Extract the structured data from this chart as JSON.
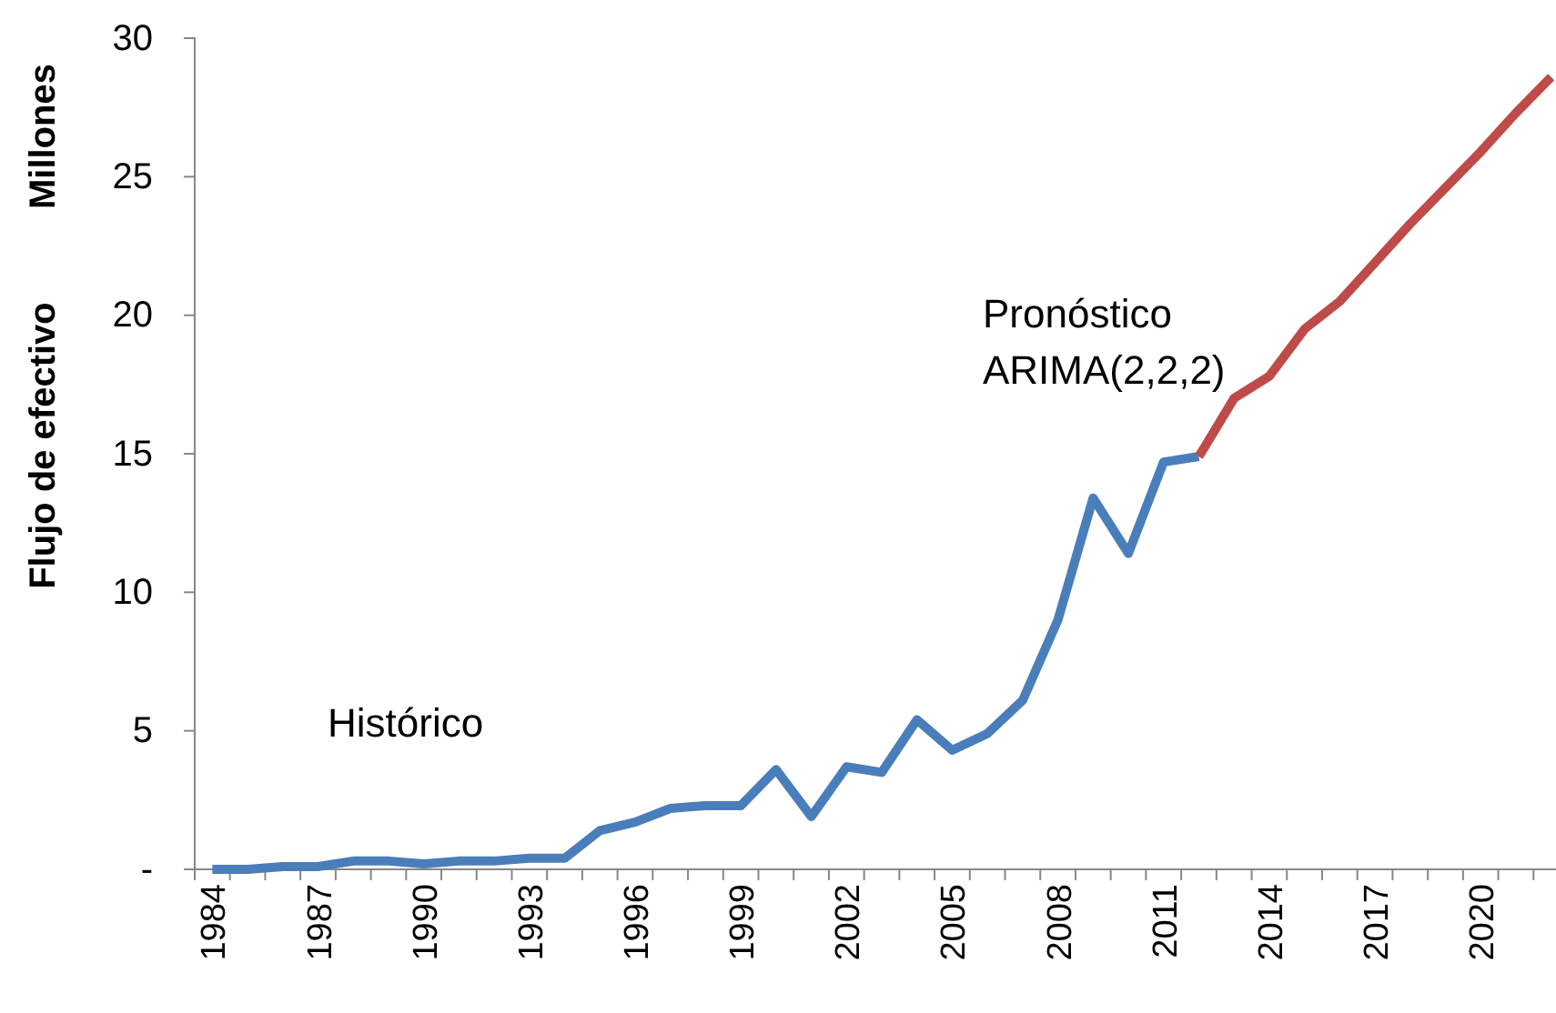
{
  "chart_data": {
    "type": "line",
    "ylabel": "Flujo de efectivo",
    "annotations": [
      "Millones"
    ],
    "categories": [
      "1984",
      null,
      null,
      "1987",
      null,
      null,
      "1990",
      null,
      null,
      "1993",
      null,
      null,
      "1996",
      null,
      null,
      "1999",
      null,
      null,
      "2002",
      null,
      null,
      "2005",
      null,
      null,
      "2008",
      null,
      null,
      "2011",
      null,
      null,
      "2014",
      null,
      null,
      "2017",
      null,
      null,
      "2020",
      null,
      null
    ],
    "series": [
      {
        "name": "Histórico",
        "color": "#4a7ebb",
        "values": [
          0.0,
          0.0,
          0.1,
          0.1,
          0.3,
          0.3,
          0.2,
          0.3,
          0.3,
          0.4,
          0.4,
          1.4,
          1.7,
          2.2,
          2.3,
          2.3,
          3.6,
          1.9,
          3.7,
          3.5,
          5.4,
          4.3,
          4.9,
          6.1,
          9.0,
          13.4,
          11.4,
          14.7,
          14.9,
          null,
          null,
          null,
          null,
          null,
          null,
          null,
          null,
          null,
          null
        ]
      },
      {
        "name": "Pronóstico ARIMA(2,2,2)",
        "color": "#be4b48",
        "values": [
          null,
          null,
          null,
          null,
          null,
          null,
          null,
          null,
          null,
          null,
          null,
          null,
          null,
          null,
          null,
          null,
          null,
          null,
          null,
          null,
          null,
          null,
          null,
          null,
          null,
          null,
          null,
          null,
          14.9,
          17.0,
          17.8,
          19.5,
          20.5,
          21.9,
          23.3,
          24.6,
          25.9,
          27.3,
          28.6
        ]
      }
    ],
    "ylim": [
      0,
      30
    ],
    "yticks": [
      {
        "value": 0,
        "label": "-"
      },
      5,
      10,
      15,
      20,
      25,
      30
    ],
    "grid": false,
    "line_style": "solid",
    "marker": "none"
  }
}
